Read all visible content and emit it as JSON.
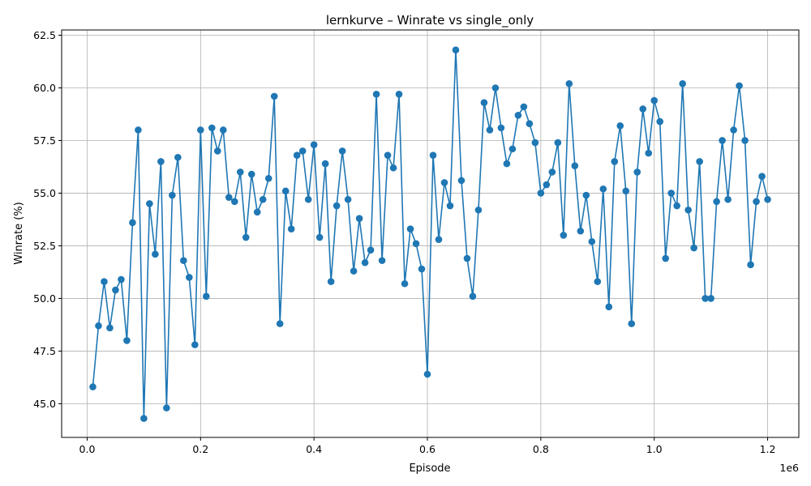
{
  "chart_data": {
    "type": "line",
    "title": "lernkurve – Winrate vs single_only",
    "xlabel": "Episode",
    "ylabel": "Winrate (%)",
    "x_offset_label": "1e6",
    "xlim": [
      -45000,
      1255000
    ],
    "ylim": [
      43.4,
      62.75
    ],
    "x_ticks": [
      0,
      200000,
      400000,
      600000,
      800000,
      1000000,
      1200000
    ],
    "x_tick_labels": [
      "0.0",
      "0.2",
      "0.4",
      "0.6",
      "0.8",
      "1.0",
      "1.2"
    ],
    "y_ticks": [
      45.0,
      47.5,
      50.0,
      52.5,
      55.0,
      57.5,
      60.0,
      62.5
    ],
    "y_tick_labels": [
      "45.0",
      "47.5",
      "50.0",
      "52.5",
      "55.0",
      "57.5",
      "60.0",
      "62.5"
    ],
    "grid": true,
    "line_color": "#1f77b4",
    "series": [
      {
        "name": "",
        "x": [
          10000,
          20000,
          30000,
          40000,
          50000,
          60000,
          70000,
          80000,
          90000,
          100000,
          110000,
          120000,
          130000,
          140000,
          150000,
          160000,
          170000,
          180000,
          190000,
          200000,
          210000,
          220000,
          230000,
          240000,
          250000,
          260000,
          270000,
          280000,
          290000,
          300000,
          310000,
          320000,
          330000,
          340000,
          350000,
          360000,
          370000,
          380000,
          390000,
          400000,
          410000,
          420000,
          430000,
          440000,
          450000,
          460000,
          470000,
          480000,
          490000,
          500000,
          510000,
          520000,
          530000,
          540000,
          550000,
          560000,
          570000,
          580000,
          590000,
          600000,
          610000,
          620000,
          630000,
          640000,
          650000,
          660000,
          670000,
          680000,
          690000,
          700000,
          710000,
          720000,
          730000,
          740000,
          750000,
          760000,
          770000,
          780000,
          790000,
          800000,
          810000,
          820000,
          830000,
          840000,
          850000,
          860000,
          870000,
          880000,
          890000,
          900000,
          910000,
          920000,
          930000,
          940000,
          950000,
          960000,
          970000,
          980000,
          990000,
          1000000,
          1010000,
          1020000,
          1030000,
          1040000,
          1050000,
          1060000,
          1070000,
          1080000,
          1090000,
          1100000,
          1110000,
          1120000,
          1130000,
          1140000,
          1150000,
          1160000,
          1170000,
          1180000,
          1190000,
          1200000
        ],
        "y": [
          45.8,
          48.7,
          50.8,
          48.6,
          50.4,
          50.9,
          48.0,
          53.6,
          58.0,
          44.3,
          54.5,
          52.1,
          56.5,
          44.8,
          54.9,
          56.7,
          51.8,
          51.0,
          47.8,
          58.0,
          50.1,
          58.1,
          57.0,
          58.0,
          54.8,
          54.6,
          56.0,
          52.9,
          55.9,
          54.1,
          54.7,
          55.7,
          59.6,
          48.8,
          55.1,
          53.3,
          56.8,
          57.0,
          54.7,
          57.3,
          52.9,
          56.4,
          50.8,
          54.4,
          57.0,
          54.7,
          51.3,
          53.8,
          51.7,
          52.3,
          59.7,
          51.8,
          56.8,
          56.2,
          59.7,
          50.7,
          53.3,
          52.6,
          51.4,
          46.4,
          56.8,
          52.8,
          55.5,
          54.4,
          61.8,
          55.6,
          51.9,
          50.1,
          54.2,
          59.3,
          58.0,
          60.0,
          58.1,
          56.4,
          57.1,
          58.7,
          59.1,
          58.3,
          57.4,
          55.0,
          55.4,
          56.0,
          57.4,
          53.0,
          60.2,
          56.3,
          53.2,
          54.9,
          52.7,
          50.8,
          55.2,
          49.6,
          56.5,
          58.2,
          55.1,
          48.8,
          56.0,
          59.0,
          56.9,
          59.4,
          58.4,
          51.9,
          55.0,
          54.4,
          60.2,
          54.2,
          52.4,
          56.5,
          50.0,
          50.0,
          54.6,
          57.5,
          54.7,
          58.0,
          60.1,
          57.5,
          51.6,
          54.6,
          55.8,
          54.7
        ]
      }
    ]
  }
}
